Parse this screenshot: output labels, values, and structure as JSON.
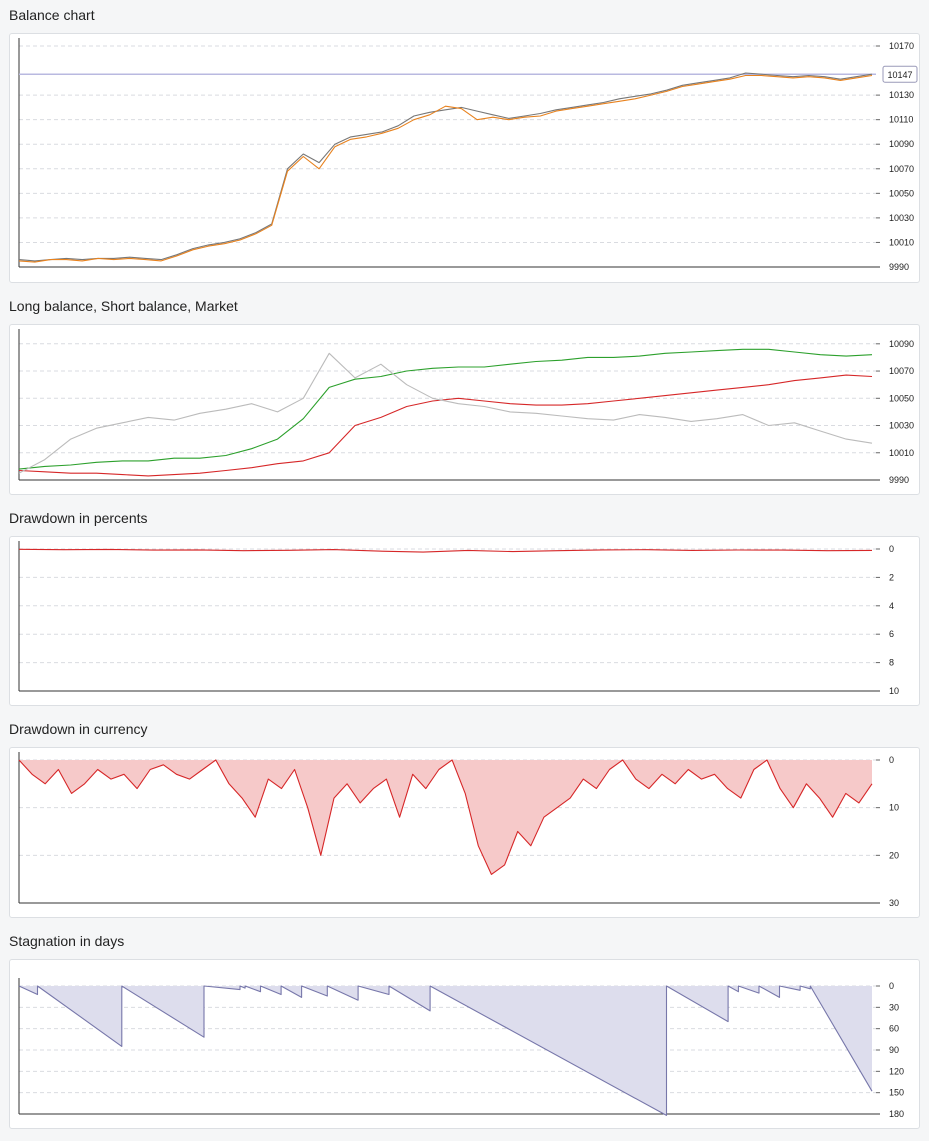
{
  "charts": [
    {
      "title": "Balance chart",
      "chart_data": {
        "type": "line",
        "title": "Balance chart",
        "ylim": [
          9990,
          10170
        ],
        "ticks": [
          10170,
          10130,
          10110,
          10090,
          10070,
          10050,
          10030,
          10010,
          9990
        ],
        "current_value_label": "10147",
        "reference_level": 10147,
        "grid": true,
        "series": [
          {
            "color": "#777777",
            "values": [
              9996,
              9995,
              9996,
              9997,
              9996,
              9997,
              9997,
              9998,
              9997,
              9996,
              10000,
              10005,
              10008,
              10010,
              10013,
              10018,
              10025,
              10070,
              10082,
              10075,
              10090,
              10096,
              10098,
              10100,
              10105,
              10113,
              10116,
              10118,
              10120,
              10117,
              10114,
              10111,
              10113,
              10115,
              10118,
              10120,
              10122,
              10124,
              10127,
              10129,
              10131,
              10134,
              10138,
              10140,
              10142,
              10144,
              10148,
              10147,
              10146,
              10145,
              10146,
              10145,
              10143,
              10145,
              10147
            ]
          },
          {
            "color": "#e8821e",
            "values": [
              9995,
              9994,
              9996,
              9996,
              9995,
              9997,
              9996,
              9997,
              9996,
              9995,
              9999,
              10004,
              10007,
              10009,
              10012,
              10017,
              10024,
              10068,
              10080,
              10070,
              10088,
              10094,
              10096,
              10099,
              10103,
              10110,
              10114,
              10121,
              10119,
              10110,
              10112,
              10110,
              10112,
              10113,
              10117,
              10119,
              10121,
              10123,
              10125,
              10127,
              10130,
              10133,
              10137,
              10139,
              10141,
              10143,
              10146,
              10146,
              10145,
              10144,
              10145,
              10144,
              10142,
              10144,
              10146
            ]
          }
        ]
      }
    },
    {
      "title": "Long balance, Short balance, Market",
      "chart_data": {
        "type": "line",
        "title": "Long balance, Short balance, Market",
        "ylim": [
          9990,
          10095
        ],
        "ticks": [
          10090,
          10070,
          10050,
          10030,
          10010,
          9990
        ],
        "grid": true,
        "series": [
          {
            "color": "#2ca02c",
            "values": [
              9998,
              10000,
              10001,
              10003,
              10004,
              10004,
              10006,
              10006,
              10008,
              10013,
              10020,
              10035,
              10058,
              10064,
              10066,
              10070,
              10072,
              10073,
              10073,
              10075,
              10077,
              10078,
              10080,
              10080,
              10081,
              10083,
              10084,
              10085,
              10086,
              10086,
              10084,
              10082,
              10081,
              10082
            ]
          },
          {
            "color": "#d62728",
            "values": [
              9997,
              9996,
              9995,
              9995,
              9994,
              9993,
              9994,
              9995,
              9997,
              9999,
              10002,
              10004,
              10010,
              10030,
              10036,
              10044,
              10048,
              10050,
              10048,
              10046,
              10045,
              10045,
              10046,
              10048,
              10050,
              10052,
              10054,
              10056,
              10058,
              10060,
              10063,
              10065,
              10067,
              10066
            ]
          },
          {
            "color": "#bbbbbb",
            "values": [
              9995,
              10005,
              10020,
              10028,
              10032,
              10036,
              10034,
              10039,
              10042,
              10046,
              10040,
              10050,
              10083,
              10065,
              10075,
              10060,
              10050,
              10046,
              10044,
              10040,
              10039,
              10037,
              10035,
              10034,
              10038,
              10036,
              10033,
              10035,
              10038,
              10030,
              10032,
              10026,
              10020,
              10017
            ]
          }
        ]
      }
    },
    {
      "title": "Drawdown in percents",
      "chart_data": {
        "type": "line",
        "title": "Drawdown in percents",
        "ylim": [
          0,
          10
        ],
        "inverted": true,
        "ticks": [
          0,
          2,
          4,
          6,
          8,
          10
        ],
        "grid": true,
        "series": [
          {
            "color": "#d62728",
            "values": [
              0.02,
              0.05,
              0.03,
              0.08,
              0.06,
              0.12,
              0.09,
              0.04,
              0.15,
              0.22,
              0.1,
              0.18,
              0.12,
              0.06,
              0.05,
              0.1,
              0.07,
              0.08,
              0.12,
              0.1
            ]
          }
        ]
      }
    },
    {
      "title": "Drawdown in currency",
      "chart_data": {
        "type": "area",
        "title": "Drawdown in currency",
        "ylim": [
          0,
          30
        ],
        "inverted": true,
        "ticks": [
          0,
          10,
          20,
          30
        ],
        "grid": true,
        "fill_color": "#f6c9c9",
        "series": [
          {
            "color": "#d62728",
            "values": [
              0,
              3,
              5,
              2,
              7,
              5,
              2,
              4,
              3,
              6,
              2,
              1,
              3,
              4,
              2,
              0,
              5,
              8,
              12,
              4,
              6,
              2,
              10,
              20,
              8,
              5,
              9,
              6,
              4,
              12,
              3,
              6,
              2,
              0,
              7,
              18,
              24,
              22,
              15,
              18,
              12,
              10,
              8,
              4,
              6,
              2,
              0,
              4,
              6,
              3,
              5,
              2,
              4,
              3,
              6,
              8,
              2,
              0,
              6,
              10,
              5,
              8,
              12,
              7,
              9,
              5
            ]
          }
        ]
      }
    },
    {
      "title": "Stagnation in days",
      "chart_data": {
        "type": "area",
        "title": "Stagnation in days",
        "ylim": [
          0,
          180
        ],
        "inverted": true,
        "ticks": [
          0,
          30,
          60,
          90,
          120,
          150,
          180
        ],
        "grid": true,
        "fill_color": "#dddded",
        "series": [
          {
            "color": "#7777aa",
            "x": [
              0,
              1.8,
              1.8,
              10,
              10,
              18,
              18,
              21.5,
              21.5,
              22,
              22,
              23.5,
              23.5,
              25.5,
              25.5,
              27.5,
              27.5,
              30,
              30,
              33,
              33,
              36,
              36,
              40,
              40,
              63,
              63,
              69,
              69,
              70,
              70,
              72,
              72,
              74,
              74,
              76,
              76,
              77,
              77,
              83
            ],
            "values": [
              0,
              12,
              0,
              85,
              0,
              72,
              0,
              5,
              0,
              3,
              0,
              8,
              0,
              12,
              0,
              16,
              0,
              14,
              0,
              20,
              0,
              12,
              0,
              35,
              0,
              182,
              0,
              50,
              0,
              8,
              0,
              10,
              0,
              16,
              0,
              6,
              0,
              4,
              0,
              148
            ]
          }
        ]
      }
    }
  ]
}
